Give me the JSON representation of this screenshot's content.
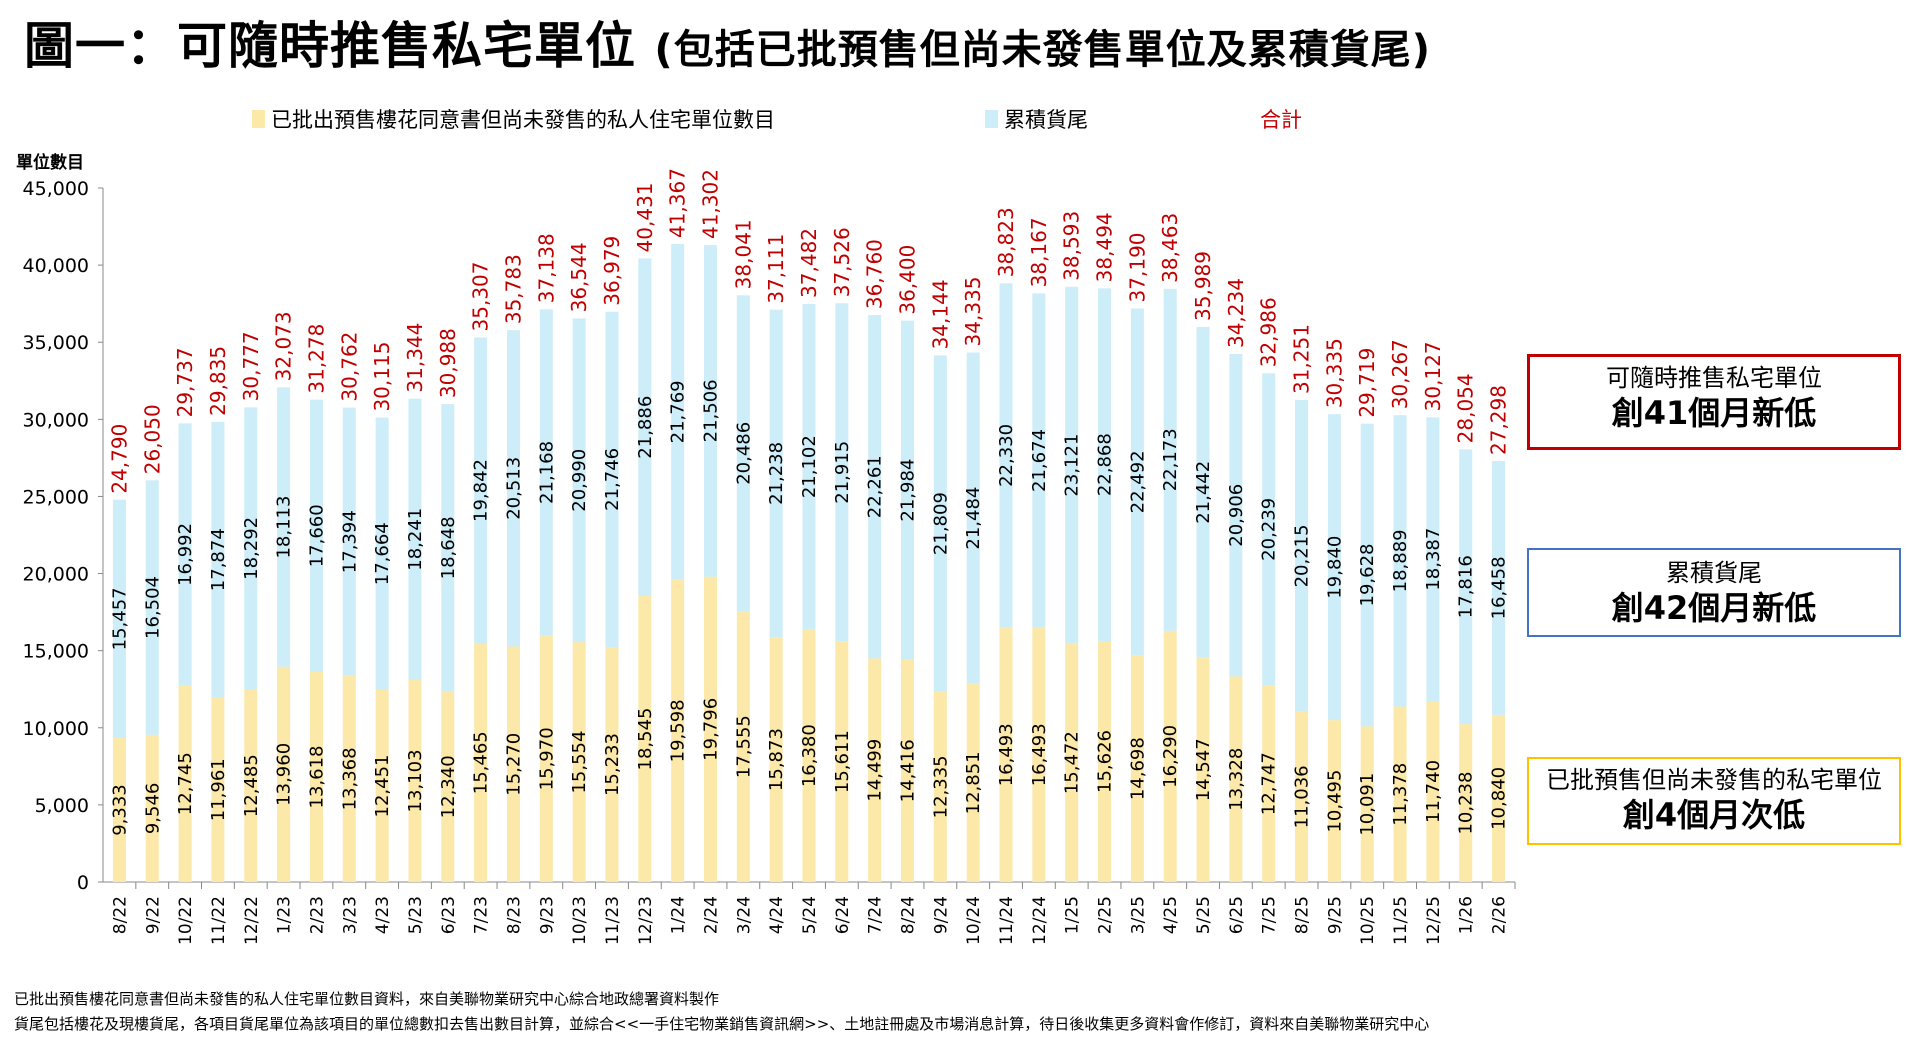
{
  "title": {
    "main": "圖一：可隨時推售私宅單位",
    "sub": "(包括已批預售但尚未發售單位及累積貨尾)"
  },
  "colors": {
    "presale": "#FCE8A8",
    "inventory": "#CDEDF8",
    "total_label": "#C00000",
    "box_total": "#C00000",
    "box_inventory": "#4472C4",
    "box_presale": "#FFC000"
  },
  "annotations": [
    {
      "line1": "可隨時推售私宅單位",
      "line2": "創41個月新低"
    },
    {
      "line1": "累積貨尾",
      "line2": "創42個月新低"
    },
    {
      "line1": "已批預售但尚未發售的私宅單位",
      "line2": "創4個月次低"
    }
  ],
  "notes": [
    "已批出預售樓花同意書但尚未發售的私人住宅單位數目資料，來自美聯物業研究中心綜合地政總署資料製作",
    "貨尾包括樓花及現樓貨尾，各項目貨尾單位為該項目的單位總數扣去售出數目計算，並綜合<<一手住宅物業銷售資訊網>>、土地註冊處及市場消息計算，待日後收集更多資料會作修訂，資料來自美聯物業研究中心"
  ],
  "chart_data": {
    "type": "bar",
    "stacked": true,
    "title": "圖一：可隨時推售私宅單位 (包括已批預售但尚未發售單位及累積貨尾)",
    "xlabel": "",
    "ylabel": "單位數目",
    "ylim": [
      0,
      45000
    ],
    "yticks": [
      0,
      5000,
      10000,
      15000,
      20000,
      25000,
      30000,
      35000,
      40000,
      45000
    ],
    "ytick_labels": [
      "0",
      "5,000",
      "10,000",
      "15,000",
      "20,000",
      "25,000",
      "30,000",
      "35,000",
      "40,000",
      "45,000"
    ],
    "grid": false,
    "legend_position": "top",
    "categories": [
      "8/22",
      "9/22",
      "10/22",
      "11/22",
      "12/22",
      "1/23",
      "2/23",
      "3/23",
      "4/23",
      "5/23",
      "6/23",
      "7/23",
      "8/23",
      "9/23",
      "10/23",
      "11/23",
      "12/23",
      "1/24",
      "2/24",
      "3/24",
      "4/24",
      "5/24",
      "6/24",
      "7/24",
      "8/24",
      "9/24",
      "10/24",
      "11/24",
      "12/24",
      "1/25",
      "2/25",
      "3/25",
      "4/25",
      "5/25",
      "6/25",
      "7/25",
      "8/25",
      "9/25",
      "10/25",
      "11/25",
      "12/25",
      "1/26",
      "2/26"
    ],
    "series": [
      {
        "name": "已批出預售樓花同意書但尚未發售的私人住宅單位數目",
        "values": [
          9333,
          9546,
          12745,
          11961,
          12485,
          13960,
          13618,
          13368,
          12451,
          13103,
          12340,
          15465,
          15270,
          15970,
          15554,
          15233,
          18545,
          19598,
          19796,
          17555,
          15873,
          16380,
          15611,
          14499,
          14416,
          12335,
          12851,
          16493,
          16493,
          15472,
          15626,
          14698,
          16290,
          14547,
          13328,
          12747,
          11036,
          10495,
          10091,
          11378,
          11740,
          10238,
          10840
        ]
      },
      {
        "name": "累積貨尾",
        "values": [
          15457,
          16504,
          16992,
          17874,
          18292,
          18113,
          17660,
          17394,
          17664,
          18241,
          18648,
          19842,
          20513,
          21168,
          20990,
          21746,
          21886,
          21769,
          21506,
          20486,
          21238,
          21102,
          21915,
          22261,
          21984,
          21809,
          21484,
          22330,
          21674,
          23121,
          22868,
          22492,
          22173,
          21442,
          20906,
          20239,
          20215,
          19840,
          19628,
          18889,
          18387,
          17816,
          16458
        ]
      },
      {
        "name": "合計",
        "values": [
          24790,
          26050,
          29737,
          29835,
          30777,
          32073,
          31278,
          30762,
          30115,
          31344,
          30988,
          35307,
          35783,
          37138,
          36544,
          36979,
          40431,
          41367,
          41302,
          38041,
          37111,
          37482,
          37526,
          36760,
          36400,
          34144,
          34335,
          38823,
          38167,
          38593,
          38494,
          37190,
          38463,
          35989,
          34234,
          32986,
          31251,
          30335,
          29719,
          30267,
          30127,
          28054,
          27298
        ]
      }
    ]
  }
}
